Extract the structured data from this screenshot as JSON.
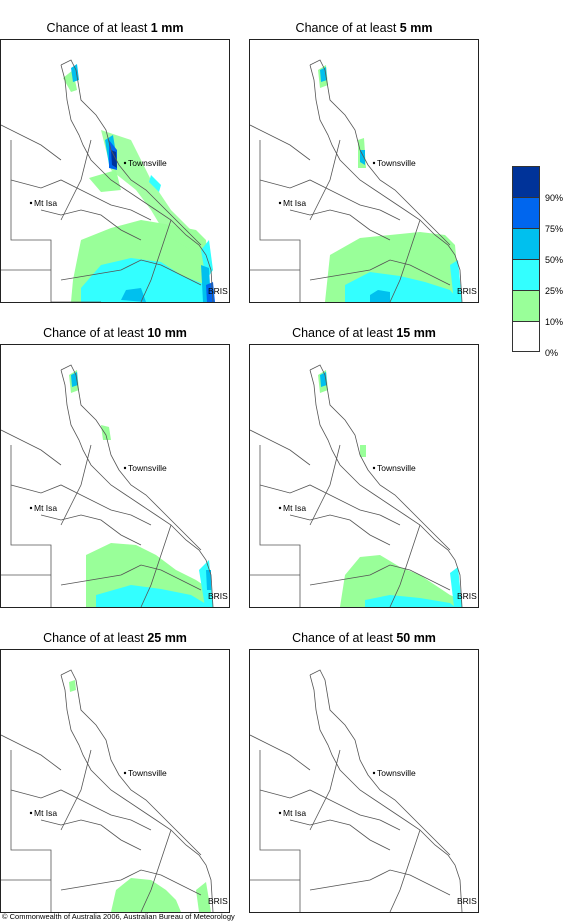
{
  "panels": [
    {
      "title_prefix": "Chance of at least",
      "title_value": "1 mm"
    },
    {
      "title_prefix": "Chance of at least",
      "title_value": "5 mm"
    },
    {
      "title_prefix": "Chance of at least",
      "title_value": "10 mm"
    },
    {
      "title_prefix": "Chance of at least",
      "title_value": "15 mm"
    },
    {
      "title_prefix": "Chance of at least",
      "title_value": "25 mm"
    },
    {
      "title_prefix": "Chance of at least",
      "title_value": "50 mm"
    }
  ],
  "map_labels": {
    "townsville": "Townsville",
    "mt_isa": "Mt Isa",
    "brisbane": "BRIS"
  },
  "legend": {
    "ticks": [
      "90%",
      "75%",
      "50%",
      "25%",
      "10%",
      "0%"
    ],
    "colors": [
      "#003399",
      "#0066ee",
      "#00c0ee",
      "#33ffff",
      "#99ff99",
      "#ffffff"
    ]
  },
  "credit": "© Commonwealth of Australia 2006, Australian Bureau of Meteorology"
}
